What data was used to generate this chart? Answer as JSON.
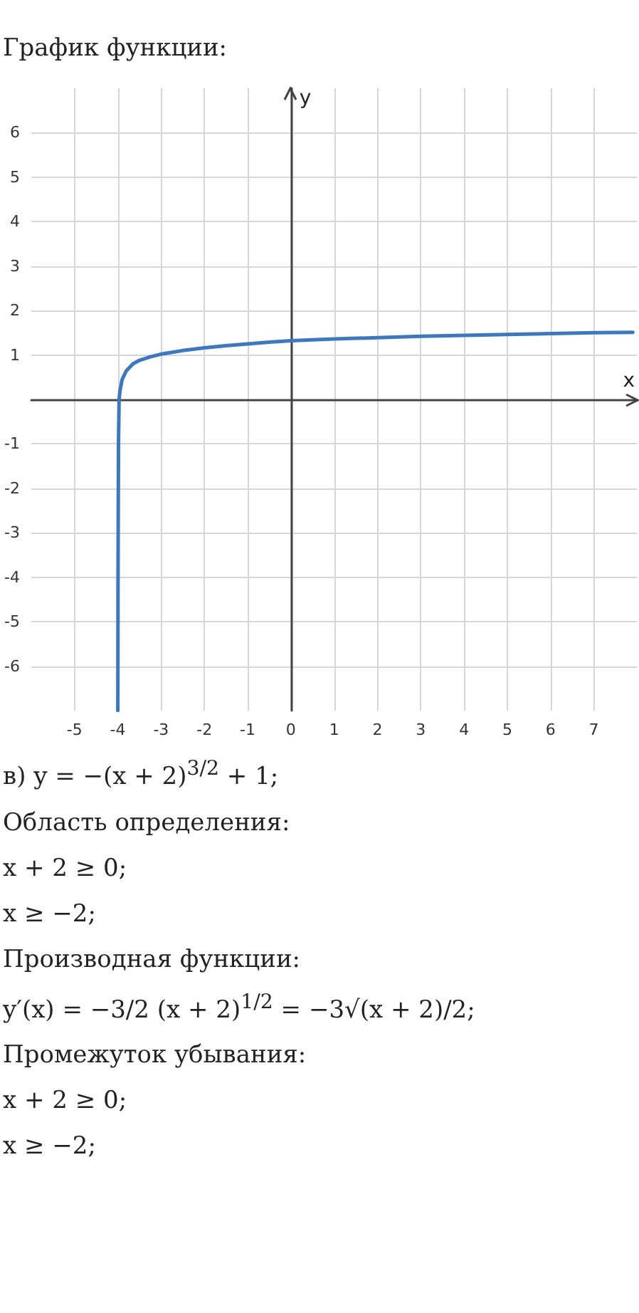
{
  "chart_data": {
    "type": "line",
    "title": "График функции:",
    "xlabel": "x",
    "ylabel": "y",
    "series": [
      {
        "color": "#3b78c4",
        "x": [
          -4,
          -3.995,
          -3.985,
          -3.97,
          -3.95,
          -3.9,
          -3.8,
          -3.65,
          -3.5,
          -3.25,
          -3,
          -2.5,
          -2,
          -1.5,
          -1,
          -0.5,
          0,
          1,
          2,
          3,
          4,
          5,
          6,
          7,
          7.9
        ],
        "values": [
          -7,
          -4,
          -1,
          0,
          0.2,
          0.45,
          0.65,
          0.8,
          0.88,
          0.96,
          1.02,
          1.1,
          1.16,
          1.21,
          1.25,
          1.29,
          1.32,
          1.36,
          1.39,
          1.42,
          1.44,
          1.46,
          1.48,
          1.5,
          1.51
        ]
      }
    ],
    "xlim": [
      -6,
      8
    ],
    "ylim": [
      -7,
      7
    ],
    "xticks": [
      -5,
      -4,
      -3,
      -2,
      -1,
      0,
      1,
      2,
      3,
      4,
      5,
      6,
      7
    ],
    "yticks": [
      -6,
      -5,
      -4,
      -3,
      -2,
      -1,
      1,
      2,
      3,
      4,
      5,
      6
    ],
    "grid": true,
    "marker": "none",
    "line_style": "solid",
    "annotations": [
      "в) y = −(x + 2)$^{3/2}$ + 1;",
      "Область определения:",
      "x + 2 ≥ 0;",
      "x ≥ −2;",
      "Производная функции:",
      "y′(x) = −3/2 (x + 2)$^{1/2}$ = −3√(x + 2)/2;",
      "Промежуток убывания:",
      "x + 2 ≥ 0;",
      "x ≥ −2;"
    ]
  }
}
